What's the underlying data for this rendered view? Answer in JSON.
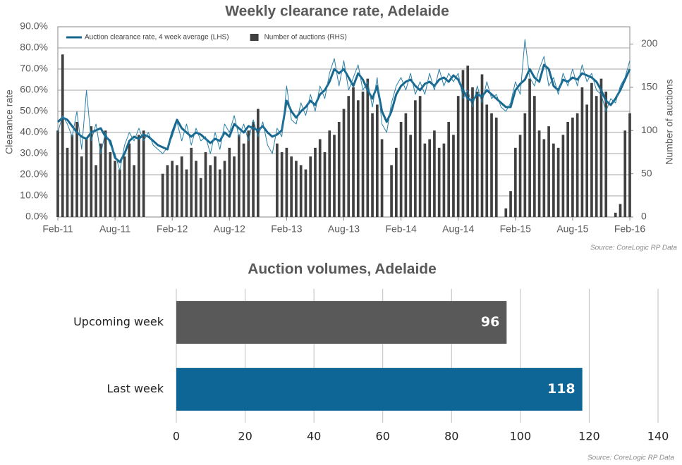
{
  "chart_data": [
    {
      "type": "combo",
      "title": "Weekly clearance rate, Adelaide",
      "y_label": "Clearance rate",
      "y2_label": "Number of auctions",
      "source": "Source: CoreLogic  RP Data",
      "x": [
        0,
        0.5,
        1,
        1.5,
        2,
        2.5,
        3,
        3.5,
        4,
        4.5,
        5,
        5.5,
        6,
        6.5,
        7,
        7.5,
        8,
        8.5,
        9,
        9.5,
        10,
        10.5,
        11,
        11.5,
        12,
        12.5,
        13,
        13.5,
        14,
        14.5,
        15,
        15.5,
        16,
        16.5,
        17,
        17.5,
        18,
        18.5,
        19,
        19.5,
        20,
        20.5,
        21,
        21.5,
        22,
        22.5,
        23,
        23.5,
        24,
        24.5,
        25,
        25.5,
        26,
        26.5,
        27,
        27.5,
        28,
        28.5,
        29,
        29.5,
        30,
        30.5,
        31,
        31.5,
        32,
        32.5,
        33,
        33.5,
        34,
        34.5,
        35,
        35.5,
        36,
        36.5,
        37,
        37.5,
        38,
        38.5,
        39,
        39.5,
        40,
        40.5,
        41,
        41.5,
        42,
        42.5,
        43,
        43.5,
        44,
        44.5,
        45,
        45.5,
        46,
        46.5,
        47,
        47.5,
        48,
        48.5,
        49,
        49.5,
        50,
        50.5,
        51,
        51.5,
        52,
        52.5,
        53,
        53.5,
        54,
        54.5,
        55,
        55.5,
        56,
        56.5,
        57,
        57.5,
        58,
        58.5,
        59,
        59.5,
        60
      ],
      "xlim": [
        0,
        60
      ],
      "xticks": [
        {
          "value": 0,
          "label": "Feb-11"
        },
        {
          "value": 6,
          "label": "Aug-11"
        },
        {
          "value": 12,
          "label": "Feb-12"
        },
        {
          "value": 18,
          "label": "Aug-12"
        },
        {
          "value": 24,
          "label": "Feb-13"
        },
        {
          "value": 30,
          "label": "Aug-13"
        },
        {
          "value": 36,
          "label": "Feb-14"
        },
        {
          "value": 42,
          "label": "Aug-14"
        },
        {
          "value": 48,
          "label": "Feb-15"
        },
        {
          "value": 54,
          "label": "Aug-15"
        },
        {
          "value": 60,
          "label": "Feb-16"
        }
      ],
      "ylim": [
        0,
        90
      ],
      "yticks": [
        {
          "value": 0,
          "label": "0.0%"
        },
        {
          "value": 10,
          "label": "10.0%"
        },
        {
          "value": 20,
          "label": "20.0%"
        },
        {
          "value": 30,
          "label": "30.0%"
        },
        {
          "value": 40,
          "label": "40.0%"
        },
        {
          "value": 50,
          "label": "50.0%"
        },
        {
          "value": 60,
          "label": "60.0%"
        },
        {
          "value": 70,
          "label": "70.0%"
        },
        {
          "value": 80,
          "label": "80.0%"
        },
        {
          "value": 90,
          "label": "90.0%"
        }
      ],
      "y2lim": [
        0,
        220
      ],
      "y2ticks": [
        0,
        50,
        100,
        150,
        200
      ],
      "grid": true,
      "legend": "top-left",
      "series": [
        {
          "name": "Auction clearance rate, 4 week average (LHS)",
          "type": "line",
          "color": "#17678f",
          "width": 3,
          "legend": true,
          "values": [
            45,
            47,
            46,
            43,
            40,
            38,
            37,
            40,
            41,
            42,
            38,
            36,
            28,
            26,
            30,
            36,
            38,
            37,
            39,
            38,
            36,
            34,
            33,
            32,
            40,
            46,
            42,
            40,
            38,
            40,
            39,
            37,
            35,
            37,
            36,
            40,
            38,
            44,
            42,
            40,
            43,
            42,
            41,
            43,
            40,
            38,
            39,
            41,
            55,
            50,
            47,
            50,
            52,
            55,
            53,
            58,
            60,
            64,
            70,
            68,
            70,
            66,
            62,
            68,
            65,
            60,
            56,
            62,
            50,
            45,
            50,
            58,
            62,
            64,
            65,
            62,
            60,
            63,
            64,
            62,
            65,
            66,
            64,
            67,
            65,
            60,
            56,
            55,
            58,
            57,
            60,
            58,
            56,
            54,
            52,
            52,
            60,
            63,
            65,
            70,
            66,
            64,
            72,
            70,
            62,
            60,
            65,
            64,
            66,
            65,
            68,
            67,
            66,
            64,
            60,
            55,
            53,
            56,
            60,
            65,
            70
          ]
        },
        {
          "type": "line",
          "color": "#2a7fa6",
          "width": 1,
          "legend": false,
          "values": [
            40,
            48,
            44,
            38,
            50,
            32,
            60,
            36,
            44,
            30,
            40,
            34,
            30,
            22,
            34,
            40,
            36,
            42,
            36,
            40,
            34,
            32,
            30,
            33,
            38,
            45,
            36,
            44,
            34,
            42,
            36,
            38,
            30,
            40,
            32,
            44,
            40,
            48,
            38,
            44,
            36,
            46,
            38,
            45,
            34,
            30,
            42,
            38,
            62,
            46,
            44,
            54,
            48,
            58,
            50,
            62,
            56,
            68,
            75,
            62,
            74,
            60,
            66,
            72,
            60,
            64,
            52,
            66,
            44,
            40,
            54,
            62,
            66,
            60,
            68,
            58,
            64,
            58,
            68,
            60,
            70,
            62,
            68,
            64,
            68,
            56,
            60,
            52,
            62,
            54,
            64,
            56,
            58,
            52,
            50,
            54,
            64,
            58,
            84,
            66,
            62,
            70,
            76,
            62,
            66,
            58,
            68,
            62,
            70,
            62,
            72,
            64,
            68,
            60,
            58,
            50,
            56,
            54,
            62,
            66,
            74
          ]
        },
        {
          "name": "Number of auctions (RHS)",
          "type": "bar",
          "axis": "y2",
          "color": "#404040",
          "legend": true,
          "values": [
            100,
            188,
            80,
            95,
            110,
            70,
            90,
            105,
            60,
            85,
            100,
            75,
            65,
            55,
            70,
            85,
            60,
            95,
            100,
            0,
            0,
            0,
            50,
            60,
            65,
            60,
            70,
            55,
            80,
            65,
            45,
            75,
            60,
            70,
            55,
            65,
            80,
            70,
            95,
            85,
            100,
            110,
            125,
            0,
            0,
            0,
            85,
            75,
            80,
            70,
            65,
            60,
            55,
            70,
            80,
            90,
            75,
            100,
            95,
            110,
            125,
            140,
            150,
            135,
            145,
            160,
            120,
            130,
            90,
            0,
            60,
            80,
            110,
            120,
            95,
            135,
            140,
            85,
            90,
            100,
            80,
            85,
            110,
            95,
            140,
            170,
            175,
            150,
            145,
            165,
            130,
            120,
            115,
            0,
            10,
            30,
            80,
            95,
            120,
            160,
            140,
            100,
            90,
            105,
            85,
            80,
            95,
            110,
            115,
            120,
            150,
            130,
            155,
            140,
            160,
            145,
            0,
            5,
            15,
            100,
            120
          ]
        }
      ]
    },
    {
      "type": "hbar",
      "title": "Auction volumes, Adelaide",
      "source": "Source: CoreLogic  RP Data",
      "categories": [
        "Upcoming week",
        "Last week"
      ],
      "values": [
        96,
        118
      ],
      "colors": [
        "#595959",
        "#0e6697"
      ],
      "xlim": [
        0,
        140
      ],
      "xticks": [
        0,
        20,
        40,
        60,
        80,
        100,
        120,
        140
      ],
      "grid": true
    }
  ]
}
